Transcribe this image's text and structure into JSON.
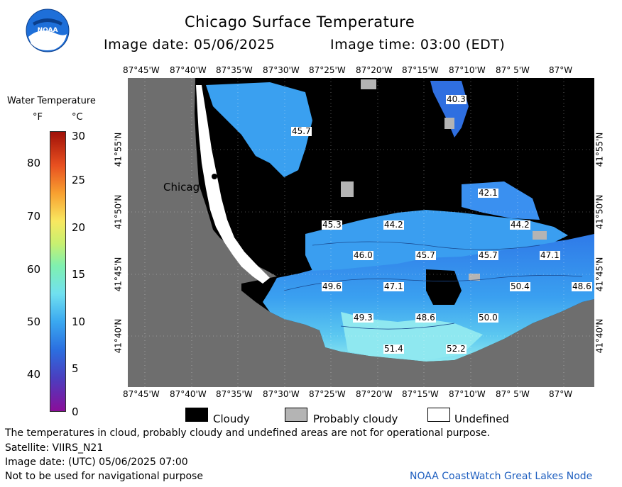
{
  "header": {
    "title": "Chicago Surface Temperature",
    "image_date": "Image date: 05/06/2025",
    "image_time": "Image time: 03:00 (EDT)"
  },
  "logo": {
    "text": "NOAA"
  },
  "legend": {
    "title": "Water Temperature",
    "unit_f": "°F",
    "unit_c": "°C",
    "f_ticks": [
      "80",
      "70",
      "60",
      "50",
      "40"
    ],
    "c_ticks": [
      "30",
      "25",
      "20",
      "15",
      "10",
      "5",
      "0"
    ]
  },
  "map": {
    "lon_labels": [
      "87°45'W",
      "87°40'W",
      "87°35'W",
      "87°30'W",
      "87°25'W",
      "87°20'W",
      "87°15'W",
      "87°10'W",
      "87° 5'W",
      "87°W"
    ],
    "lat_labels": [
      "41°55'N",
      "41°50'N",
      "41°45'N",
      "41°40'N"
    ],
    "city_label": "Chicago",
    "temperature_labels": [
      "40.3",
      "45.7",
      "42.1",
      "45.3",
      "44.2",
      "44.2",
      "46.0",
      "45.7",
      "45.7",
      "47.1",
      "49.6",
      "47.1",
      "50.4",
      "48.6",
      "49.3",
      "48.6",
      "50.0",
      "51.4",
      "52.2"
    ]
  },
  "key": {
    "cloudy": "Cloudy",
    "probably_cloudy": "Probably cloudy",
    "undefined": "Undefined"
  },
  "footer": {
    "note": "The temperatures in cloud, probably cloudy and undefined areas are not for operational purpose.",
    "satellite": "Satellite: VIIRS_N21",
    "utc_date": "Image date: (UTC) 05/06/2025  07:00",
    "nav_note": "Not to be used for navigational purpose",
    "credit": "NOAA CoastWatch Great Lakes Node"
  },
  "colors": {
    "land": "#6e6e6e",
    "cloud": "#000000",
    "probably_cloudy": "#b4b4b4",
    "water_cold": "#2f6fe0",
    "water_mid": "#3aa0f0",
    "water_warm": "#7fe0f0",
    "credit": "#2060c0"
  }
}
